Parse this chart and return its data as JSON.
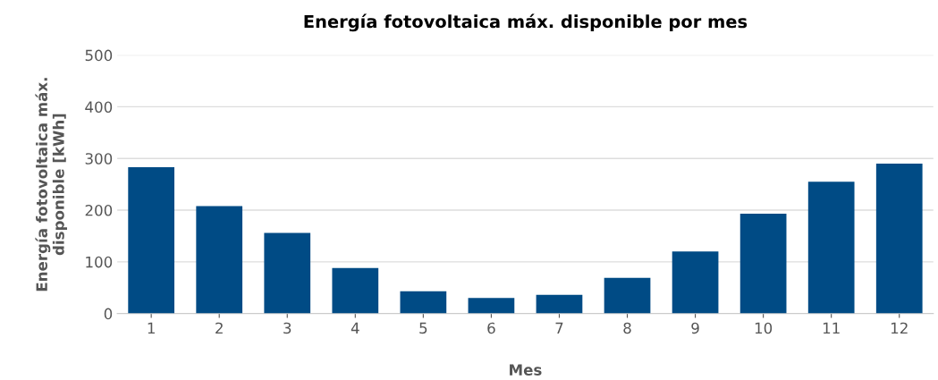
{
  "chart_data": {
    "type": "bar",
    "title": "Energía fotovoltaica máx. disponible por mes",
    "xlabel": "Mes",
    "ylabel": "Energía fotovoltaica máx.\ndisponible [kWh]",
    "categories": [
      "1",
      "2",
      "3",
      "4",
      "5",
      "6",
      "7",
      "8",
      "9",
      "10",
      "11",
      "12"
    ],
    "values": [
      283,
      208,
      156,
      88,
      43,
      30,
      36,
      69,
      120,
      193,
      255,
      290
    ],
    "color": "#004b85",
    "ylim": [
      0,
      500
    ],
    "yticks": [
      0,
      100,
      200,
      300,
      400,
      500
    ],
    "grid": "y",
    "legend": false
  }
}
